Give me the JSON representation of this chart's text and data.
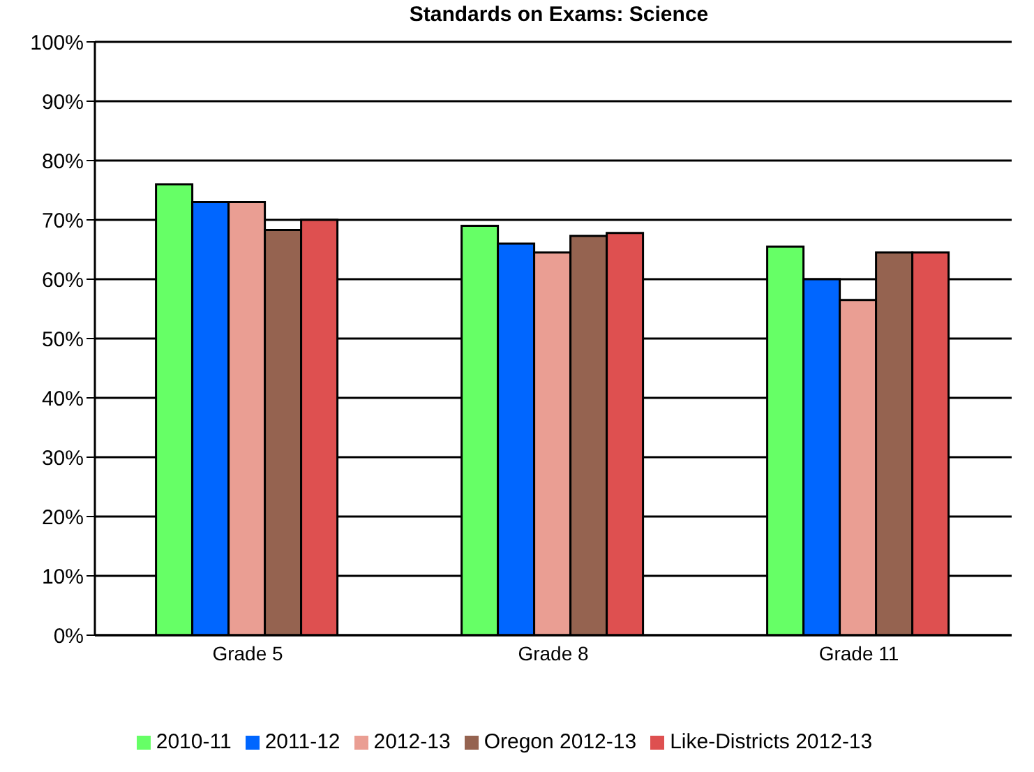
{
  "chart_data": {
    "type": "bar",
    "title": "Standards on Exams: Science",
    "categories": [
      "Grade 5",
      "Grade 8",
      "Grade 11"
    ],
    "series": [
      {
        "name": "2010-11",
        "color": "#66ff66",
        "values": [
          76,
          69,
          65.5
        ]
      },
      {
        "name": "2011-12",
        "color": "#0066ff",
        "values": [
          73,
          66,
          60
        ]
      },
      {
        "name": "2012-13",
        "color": "#ea9e93",
        "values": [
          73,
          64.5,
          56.5
        ]
      },
      {
        "name": "Oregon 2012-13",
        "color": "#956350",
        "values": [
          68.3,
          67.3,
          64.5
        ]
      },
      {
        "name": "Like-Districts 2012-13",
        "color": "#de5050",
        "values": [
          70,
          67.8,
          64.5
        ]
      }
    ],
    "ylim": [
      0,
      100
    ],
    "yticks": [
      {
        "value": 0,
        "label": "0%"
      },
      {
        "value": 10,
        "label": "10%"
      },
      {
        "value": 20,
        "label": "20%"
      },
      {
        "value": 30,
        "label": "30%"
      },
      {
        "value": 40,
        "label": "40%"
      },
      {
        "value": 50,
        "label": "50%"
      },
      {
        "value": 60,
        "label": "60%"
      },
      {
        "value": 70,
        "label": "70%"
      },
      {
        "value": 80,
        "label": "80%"
      },
      {
        "value": 90,
        "label": "90%"
      },
      {
        "value": 100,
        "label": "100%"
      }
    ],
    "grid": "y",
    "legend": "bottom"
  }
}
